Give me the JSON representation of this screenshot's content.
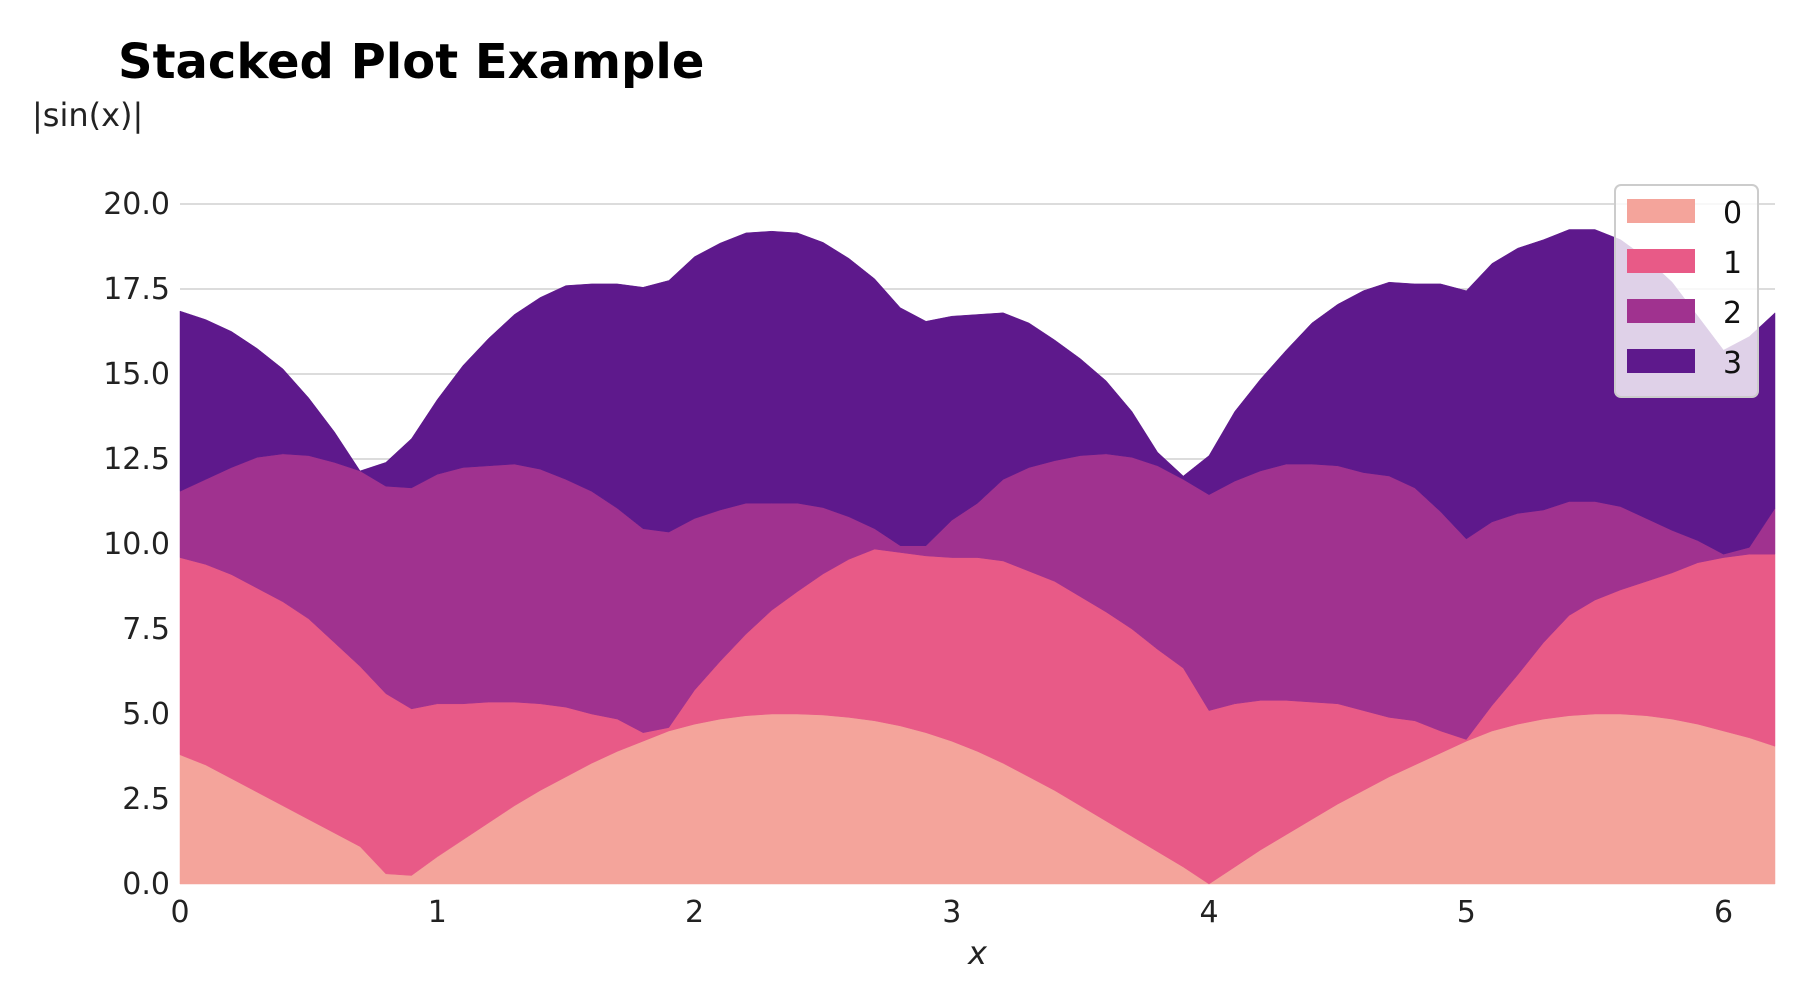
{
  "chart_data": {
    "type": "area",
    "stacked": true,
    "title": "Stacked Plot Example",
    "xlabel": "x",
    "ylabel": "|sin(x)|",
    "xlim": [
      0,
      6.2
    ],
    "ylim": [
      0,
      21
    ],
    "x_ticks": [
      "0",
      "1",
      "2",
      "3",
      "4",
      "5",
      "6"
    ],
    "y_ticks": [
      "0.0",
      "2.5",
      "5.0",
      "7.5",
      "10.0",
      "12.5",
      "15.0",
      "17.5",
      "20.0"
    ],
    "grid": "horizontal",
    "legend_position": "top-right",
    "x": [
      0,
      0.1,
      0.2,
      0.3,
      0.4,
      0.5,
      0.6,
      0.7,
      0.8,
      0.9,
      1.0,
      1.1,
      1.2,
      1.3,
      1.4,
      1.5,
      1.6,
      1.7,
      1.8,
      1.9,
      2.0,
      2.1,
      2.2,
      2.3,
      2.4,
      2.5,
      2.6,
      2.7,
      2.8,
      2.9,
      3.0,
      3.1,
      3.2,
      3.3,
      3.4,
      3.5,
      3.6,
      3.7,
      3.8,
      3.9,
      4.0,
      4.1,
      4.2,
      4.3,
      4.4,
      4.5,
      4.6,
      4.7,
      4.8,
      4.9,
      5.0,
      5.1,
      5.2,
      5.3,
      5.4,
      5.5,
      5.6,
      5.7,
      5.8,
      5.9,
      6.0,
      6.1,
      6.2
    ],
    "series": [
      {
        "name": "0",
        "color": "#f4a49b",
        "values": [
          3.8,
          3.5,
          3.1,
          2.7,
          2.3,
          1.9,
          1.5,
          1.1,
          0.3,
          0.25,
          0.8,
          1.3,
          1.8,
          2.3,
          2.75,
          3.15,
          3.55,
          3.9,
          4.2,
          4.5,
          4.7,
          4.85,
          4.95,
          5.0,
          5.0,
          4.97,
          4.9,
          4.8,
          4.65,
          4.45,
          4.2,
          3.9,
          3.55,
          3.15,
          2.75,
          2.3,
          1.85,
          1.4,
          0.95,
          0.5,
          0.0,
          0.5,
          1.0,
          1.45,
          1.9,
          2.35,
          2.75,
          3.15,
          3.5,
          3.85,
          4.2,
          4.5,
          4.7,
          4.85,
          4.95,
          5.0,
          5.0,
          4.95,
          4.85,
          4.7,
          4.5,
          4.3,
          4.05
        ]
      },
      {
        "name": "1",
        "color": "#e85a87",
        "values": [
          5.8,
          5.9,
          6.0,
          6.0,
          6.0,
          5.9,
          5.6,
          5.3,
          5.3,
          4.9,
          4.5,
          4.0,
          3.55,
          3.05,
          2.55,
          2.05,
          1.45,
          0.95,
          0.25,
          0.1,
          1.0,
          1.7,
          2.4,
          3.05,
          3.6,
          4.15,
          4.65,
          5.05,
          5.1,
          5.2,
          5.4,
          5.7,
          5.95,
          6.05,
          6.15,
          6.15,
          6.15,
          6.1,
          5.95,
          5.85,
          5.1,
          4.8,
          4.4,
          3.95,
          3.45,
          2.95,
          2.35,
          1.75,
          1.3,
          0.65,
          0.05,
          0.75,
          1.45,
          2.25,
          2.95,
          3.35,
          3.65,
          3.95,
          4.3,
          4.75,
          5.1,
          5.4,
          5.65
        ]
      },
      {
        "name": "2",
        "color": "#a0328f",
        "values": [
          1.95,
          2.5,
          3.15,
          3.85,
          4.35,
          4.8,
          5.3,
          5.75,
          6.1,
          6.5,
          6.75,
          6.95,
          6.95,
          7.0,
          6.9,
          6.7,
          6.55,
          6.2,
          6.0,
          5.75,
          5.05,
          4.45,
          3.85,
          3.15,
          2.6,
          1.95,
          1.25,
          0.6,
          0.2,
          0.3,
          1.1,
          1.6,
          2.4,
          3.05,
          3.55,
          4.15,
          4.65,
          5.05,
          5.4,
          5.55,
          6.35,
          6.55,
          6.75,
          6.95,
          7.0,
          7.0,
          7.0,
          7.1,
          6.85,
          6.45,
          5.9,
          5.4,
          4.75,
          3.9,
          3.35,
          2.9,
          2.45,
          1.85,
          1.25,
          0.65,
          0.1,
          0.2,
          1.35
        ]
      },
      {
        "name": "3",
        "color": "#5e198c",
        "values": [
          5.3,
          4.7,
          4.0,
          3.2,
          2.5,
          1.7,
          0.9,
          0.0,
          0.7,
          1.45,
          2.2,
          3.0,
          3.75,
          4.4,
          5.05,
          5.7,
          6.1,
          6.6,
          7.1,
          7.4,
          7.7,
          7.85,
          7.95,
          8.0,
          7.95,
          7.8,
          7.6,
          7.35,
          7.0,
          6.6,
          6.0,
          5.55,
          4.9,
          4.25,
          3.55,
          2.85,
          2.15,
          1.35,
          0.4,
          0.1,
          1.15,
          2.05,
          2.7,
          3.35,
          4.15,
          4.75,
          5.35,
          5.7,
          6.0,
          6.7,
          7.3,
          7.6,
          7.8,
          7.95,
          8.0,
          8.0,
          7.85,
          7.65,
          7.3,
          6.6,
          6.0,
          6.2,
          5.75
        ]
      }
    ]
  }
}
